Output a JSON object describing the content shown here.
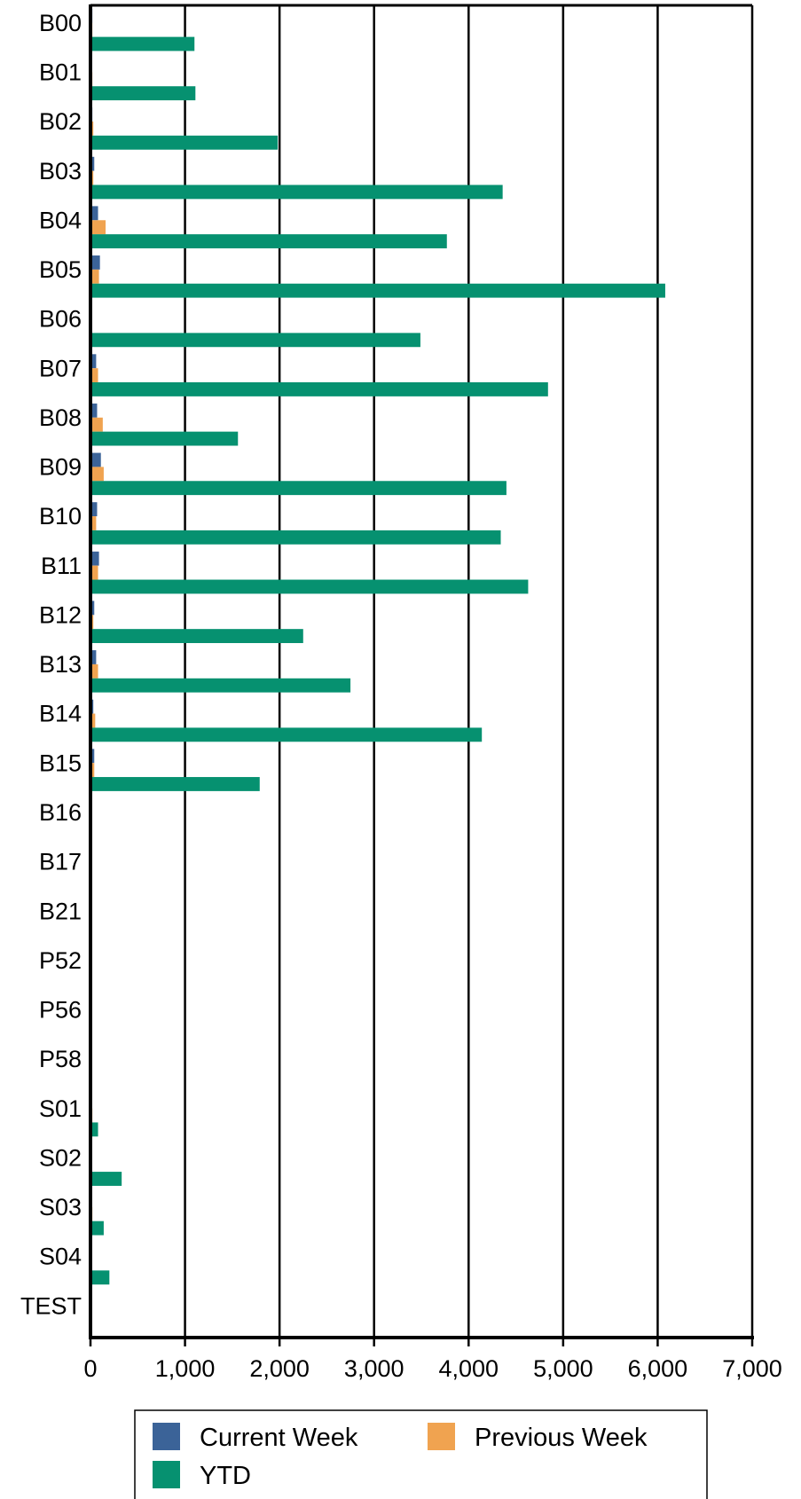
{
  "chart_data": {
    "type": "bar",
    "orientation": "horizontal",
    "categories": [
      "B00",
      "B01",
      "B02",
      "B03",
      "B04",
      "B05",
      "B06",
      "B07",
      "B08",
      "B09",
      "B10",
      "B11",
      "B12",
      "B13",
      "B14",
      "B15",
      "B16",
      "B17",
      "B21",
      "P52",
      "P56",
      "P58",
      "S01",
      "S02",
      "S03",
      "S04",
      "TEST"
    ],
    "series": [
      {
        "name": "Current Week",
        "color": "#3b6398",
        "values": [
          20,
          10,
          20,
          40,
          80,
          100,
          10,
          60,
          70,
          110,
          70,
          90,
          40,
          60,
          30,
          40,
          5,
          5,
          3,
          5,
          5,
          5,
          15,
          10,
          15,
          5,
          3
        ]
      },
      {
        "name": "Previous Week",
        "color": "#f0a350",
        "values": [
          20,
          20,
          30,
          30,
          160,
          90,
          5,
          80,
          130,
          140,
          60,
          80,
          30,
          80,
          50,
          40,
          5,
          5,
          3,
          5,
          5,
          5,
          20,
          10,
          20,
          10,
          3
        ]
      },
      {
        "name": "YTD",
        "color": "#069170",
        "values": [
          1100,
          1110,
          1980,
          4360,
          3770,
          6080,
          3490,
          4840,
          1560,
          4400,
          4340,
          4630,
          2250,
          2750,
          4140,
          1790,
          15,
          15,
          5,
          15,
          15,
          15,
          80,
          330,
          140,
          200,
          15
        ]
      }
    ],
    "xlim": [
      0,
      7000
    ],
    "ticks": [
      0,
      1000,
      2000,
      3000,
      4000,
      5000,
      6000,
      7000
    ],
    "tick_labels": [
      "0",
      "1,000",
      "2,000",
      "3,000",
      "4,000",
      "5,000",
      "6,000",
      "7,000"
    ],
    "grid": true,
    "legend_position": "bottom",
    "title": "",
    "xlabel": "",
    "ylabel": ""
  }
}
